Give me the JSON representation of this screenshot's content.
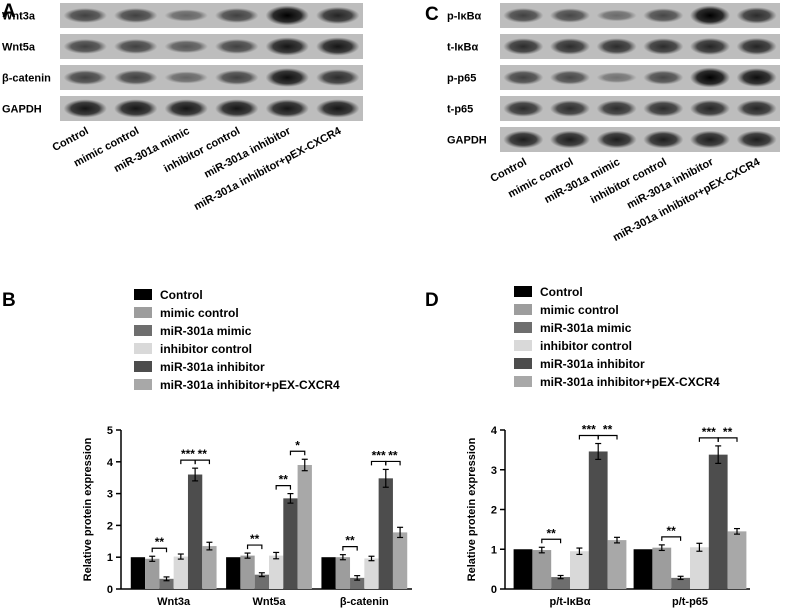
{
  "panel_letters": {
    "A": "A",
    "B": "B",
    "C": "C",
    "D": "D"
  },
  "colors": {
    "Control": "#000000",
    "mimic control": "#9d9d9d",
    "miR-301a mimic": "#6e6e6e",
    "inhibitor control": "#d9d9d9",
    "miR-301a inhibitor": "#4d4d4d",
    "miR-301a inhibitor+pEX-CXCR4": "#a8a8a8"
  },
  "blot_a": {
    "rows": [
      "Wnt3a",
      "Wnt5a",
      "β-catenin",
      "GAPDH"
    ],
    "lanes": [
      "Control",
      "mimic control",
      "miR-301a mimic",
      "inhibitor control",
      "miR-301a inhibitor",
      "miR-301a inhibitor+pEX-CXCR4"
    ],
    "intensities": [
      [
        0.55,
        0.55,
        0.3,
        0.55,
        1.0,
        0.75
      ],
      [
        0.55,
        0.55,
        0.4,
        0.55,
        0.85,
        0.85
      ],
      [
        0.55,
        0.55,
        0.3,
        0.55,
        0.9,
        0.7
      ],
      [
        0.85,
        0.85,
        0.85,
        0.85,
        0.85,
        0.85
      ]
    ]
  },
  "blot_c": {
    "rows": [
      "p-IκBα",
      "t-IκBα",
      "p-p65",
      "t-p65",
      "GAPDH"
    ],
    "lanes": [
      "Control",
      "mimic control",
      "miR-301a mimic",
      "inhibitor control",
      "miR-301a inhibitor",
      "miR-301a inhibitor+pEX-CXCR4"
    ],
    "intensities": [
      [
        0.55,
        0.5,
        0.25,
        0.5,
        1.0,
        0.7
      ],
      [
        0.7,
        0.7,
        0.7,
        0.7,
        0.75,
        0.75
      ],
      [
        0.55,
        0.5,
        0.2,
        0.5,
        1.0,
        0.9
      ],
      [
        0.7,
        0.7,
        0.7,
        0.7,
        0.75,
        0.75
      ],
      [
        0.8,
        0.8,
        0.8,
        0.8,
        0.8,
        0.8
      ]
    ]
  },
  "chart_data": [
    {
      "type": "bar",
      "panel": "B",
      "categories": [
        "Wnt3a",
        "Wnt5a",
        "β-catenin"
      ],
      "ylabel": "Relative protein expression",
      "ylim": [
        0,
        5
      ],
      "yticks": [
        "0",
        "1",
        "2",
        "3",
        "4",
        "5"
      ],
      "legend": "top",
      "series": [
        {
          "name": "Control",
          "values": [
            1.0,
            1.0,
            1.0
          ],
          "errors": [
            0,
            0,
            0
          ]
        },
        {
          "name": "mimic control",
          "values": [
            0.95,
            1.05,
            1.0
          ],
          "errors": [
            0.08,
            0.08,
            0.08
          ]
        },
        {
          "name": "miR-301a mimic",
          "values": [
            0.32,
            0.45,
            0.35
          ],
          "errors": [
            0.06,
            0.06,
            0.07
          ]
        },
        {
          "name": "inhibitor control",
          "values": [
            1.02,
            1.05,
            0.96
          ],
          "errors": [
            0.08,
            0.1,
            0.07
          ]
        },
        {
          "name": "miR-301a inhibitor",
          "values": [
            3.6,
            2.85,
            3.48
          ],
          "errors": [
            0.2,
            0.15,
            0.28
          ]
        },
        {
          "name": "miR-301a inhibitor+pEX-CXCR4",
          "values": [
            1.35,
            3.9,
            1.78
          ],
          "errors": [
            0.12,
            0.18,
            0.16
          ]
        }
      ],
      "significance": [
        {
          "group": 0,
          "from": 1,
          "to": 2,
          "label": "**"
        },
        {
          "group": 0,
          "from": 3,
          "to": 4,
          "label": "***"
        },
        {
          "group": 0,
          "from": 4,
          "to": 5,
          "label": "**"
        },
        {
          "group": 1,
          "from": 1,
          "to": 2,
          "label": "**"
        },
        {
          "group": 1,
          "from": 3,
          "to": 4,
          "label": "**"
        },
        {
          "group": 1,
          "from": 4,
          "to": 5,
          "label": "*"
        },
        {
          "group": 2,
          "from": 1,
          "to": 2,
          "label": "**"
        },
        {
          "group": 2,
          "from": 3,
          "to": 4,
          "label": "***"
        },
        {
          "group": 2,
          "from": 4,
          "to": 5,
          "label": "**"
        }
      ]
    },
    {
      "type": "bar",
      "panel": "D",
      "categories": [
        "p/t-IκBα",
        "p/t-p65"
      ],
      "ylabel": "Relative protein expression",
      "ylim": [
        0,
        4
      ],
      "yticks": [
        "0",
        "1",
        "2",
        "3",
        "4"
      ],
      "legend": "top",
      "series": [
        {
          "name": "Control",
          "values": [
            1.0,
            1.0
          ],
          "errors": [
            0,
            0
          ]
        },
        {
          "name": "mimic control",
          "values": [
            0.98,
            1.04
          ],
          "errors": [
            0.07,
            0.07
          ]
        },
        {
          "name": "miR-301a mimic",
          "values": [
            0.3,
            0.28
          ],
          "errors": [
            0.04,
            0.04
          ]
        },
        {
          "name": "inhibitor control",
          "values": [
            0.95,
            1.05
          ],
          "errors": [
            0.08,
            0.1
          ]
        },
        {
          "name": "miR-301a inhibitor",
          "values": [
            3.46,
            3.38
          ],
          "errors": [
            0.2,
            0.22
          ]
        },
        {
          "name": "miR-301a inhibitor+pEX-CXCR4",
          "values": [
            1.23,
            1.45
          ],
          "errors": [
            0.07,
            0.07
          ]
        }
      ],
      "significance": [
        {
          "group": 0,
          "from": 1,
          "to": 2,
          "label": "**"
        },
        {
          "group": 0,
          "from": 3,
          "to": 4,
          "label": "***"
        },
        {
          "group": 0,
          "from": 4,
          "to": 5,
          "label": "**"
        },
        {
          "group": 1,
          "from": 1,
          "to": 2,
          "label": "**"
        },
        {
          "group": 1,
          "from": 3,
          "to": 4,
          "label": "***"
        },
        {
          "group": 1,
          "from": 4,
          "to": 5,
          "label": "**"
        }
      ]
    }
  ]
}
